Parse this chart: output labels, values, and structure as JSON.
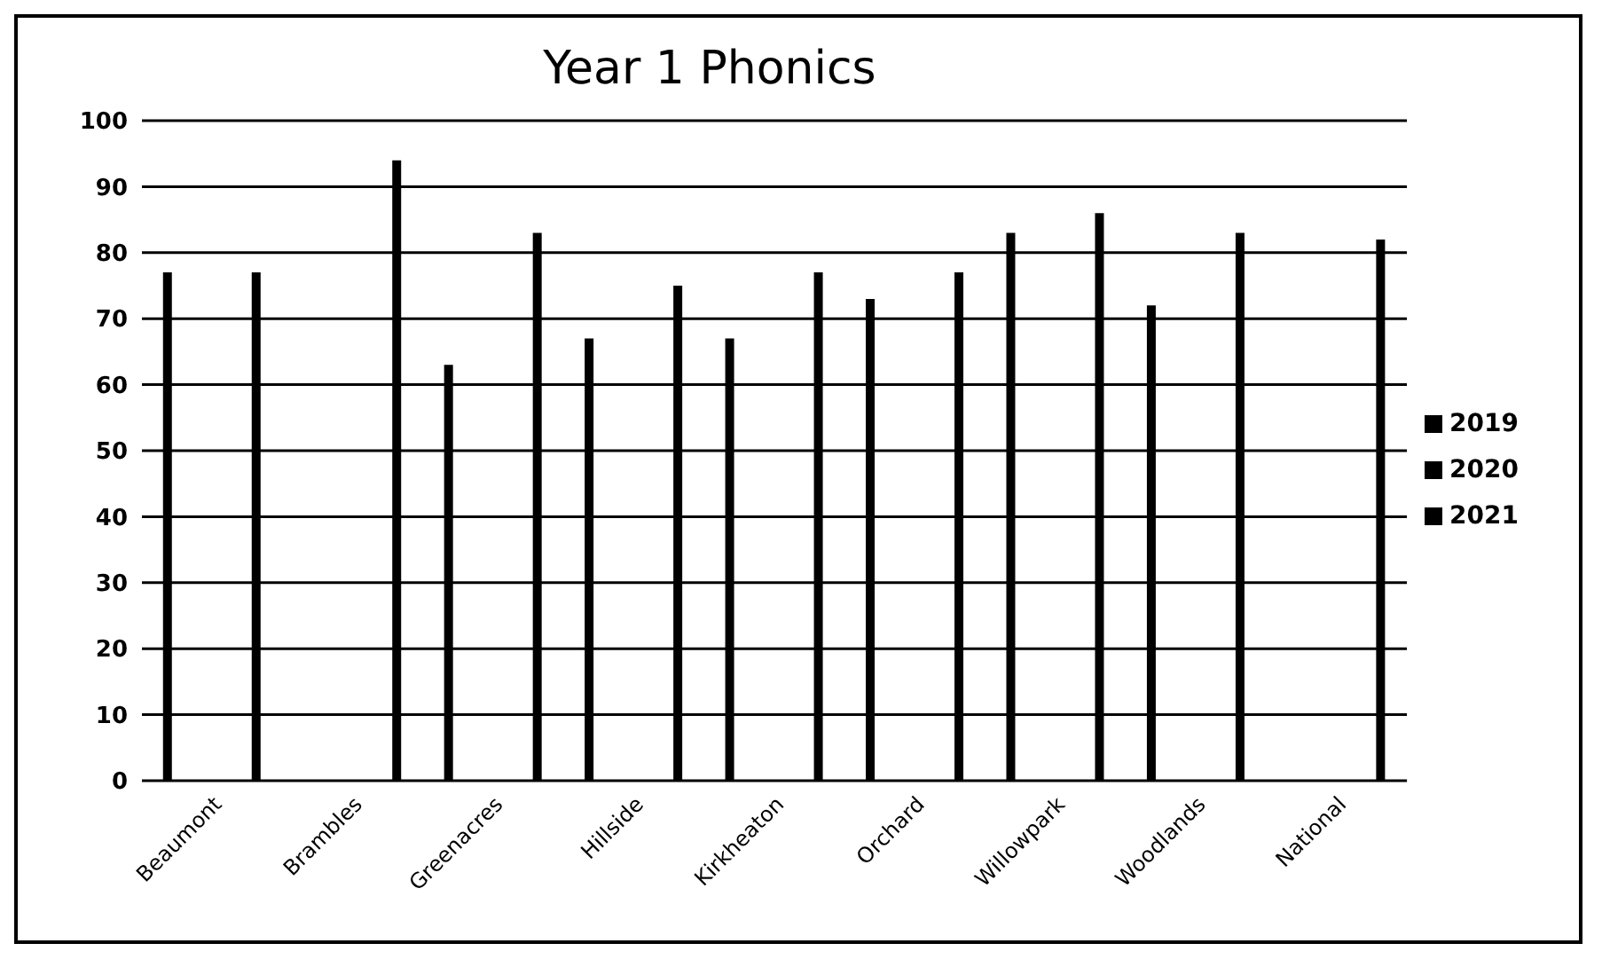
{
  "chart_data": {
    "type": "bar",
    "title": "Year 1 Phonics",
    "categories": [
      "Beaumont",
      "Brambles",
      "Greenacres",
      "Hillside",
      "Kirkheaton",
      "Orchard",
      "Willowpark",
      "Woodlands",
      "National"
    ],
    "series": [
      {
        "name": "2019",
        "color": "#000000",
        "values": [
          77,
          null,
          63,
          67,
          67,
          73,
          83,
          72,
          null
        ]
      },
      {
        "name": "2020",
        "color": "#000000",
        "values": [
          null,
          null,
          null,
          null,
          null,
          null,
          null,
          null,
          null
        ]
      },
      {
        "name": "2021",
        "color": "#000000",
        "values": [
          77,
          94,
          83,
          75,
          77,
          77,
          86,
          83,
          82
        ]
      }
    ],
    "ylim": [
      0,
      100
    ],
    "yticks": [
      0,
      10,
      20,
      30,
      40,
      50,
      60,
      70,
      80,
      90,
      100
    ],
    "grid": "y",
    "legend": "right"
  }
}
